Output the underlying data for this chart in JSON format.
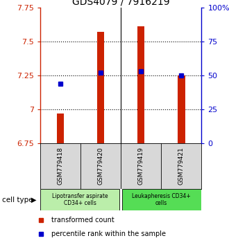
{
  "title": "GDS4079 / 7916219",
  "samples": [
    "GSM779418",
    "GSM779420",
    "GSM779419",
    "GSM779421"
  ],
  "red_values": [
    6.97,
    7.57,
    7.61,
    7.25
  ],
  "blue_values": [
    44,
    52,
    53,
    50
  ],
  "ylim_left": [
    6.75,
    7.75
  ],
  "ylim_right": [
    0,
    100
  ],
  "yticks_left": [
    6.75,
    7.0,
    7.25,
    7.5,
    7.75
  ],
  "yticks_right": [
    0,
    25,
    50,
    75,
    100
  ],
  "ytick_labels_left": [
    "6.75",
    "7",
    "7.25",
    "7.5",
    "7.75"
  ],
  "ytick_labels_right": [
    "0",
    "25",
    "50",
    "75",
    "100%"
  ],
  "red_color": "#cc2200",
  "blue_color": "#0000cc",
  "bar_width": 0.18,
  "cell_groups": [
    {
      "label": "Lipotransfer aspirate\nCD34+ cells",
      "color": "#bbeeaa",
      "samples": [
        0,
        1
      ]
    },
    {
      "label": "Leukapheresis CD34+\ncells",
      "color": "#55dd55",
      "samples": [
        2,
        3
      ]
    }
  ],
  "cell_type_label": "cell type",
  "legend_red": "transformed count",
  "legend_blue": "percentile rank within the sample",
  "bg_color": "#d8d8d8",
  "plot_bg": "#ffffff",
  "grid_dotted": [
    7.0,
    7.25,
    7.5
  ]
}
